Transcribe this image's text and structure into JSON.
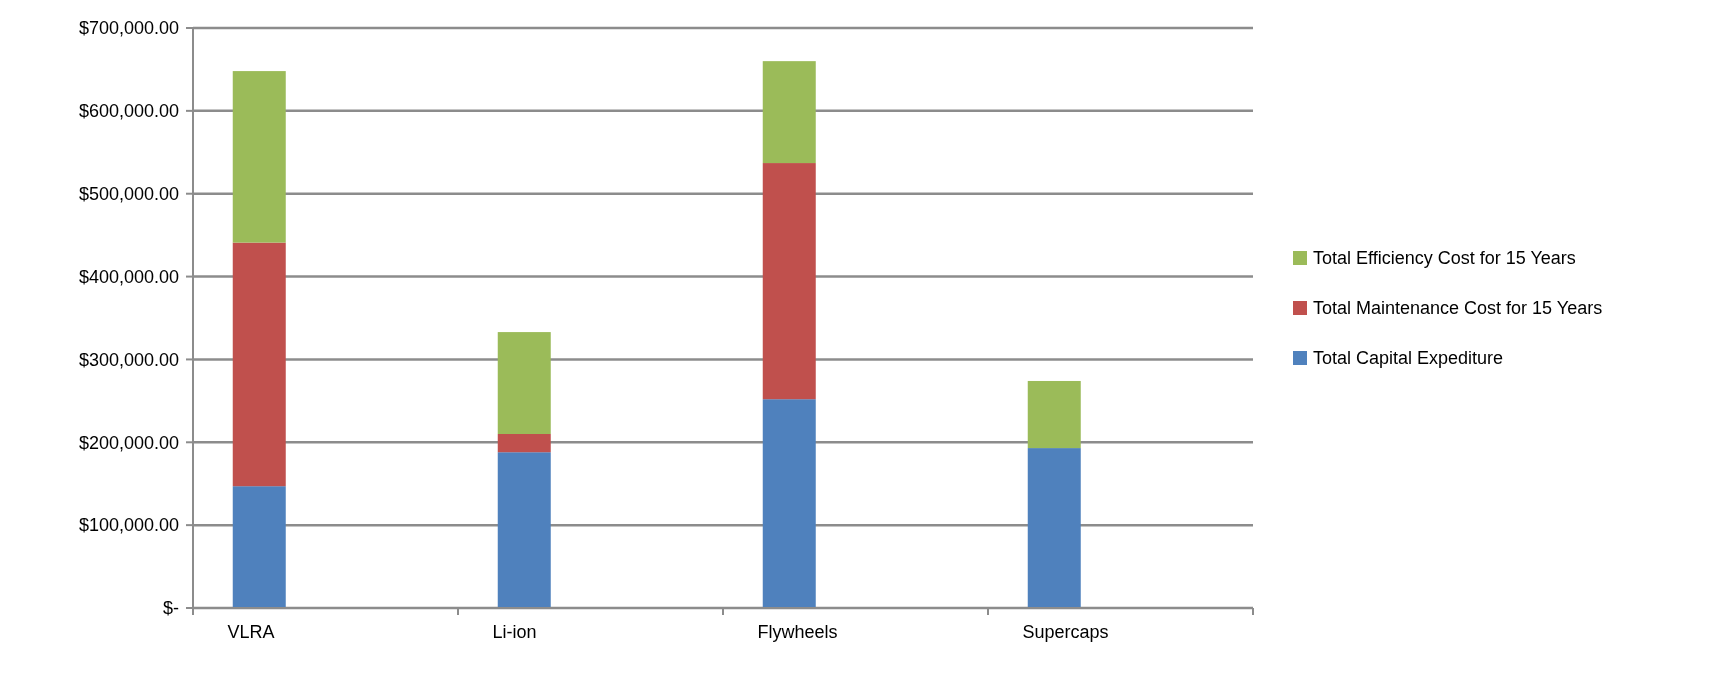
{
  "chart_data": {
    "type": "bar",
    "stacked": true,
    "categories": [
      "VLRA",
      "Li-ion",
      "Flywheels",
      "Supercaps"
    ],
    "series": [
      {
        "name": "Total Capital Expediture",
        "color": "#4f81bd",
        "values": [
          147000,
          188000,
          252000,
          193000
        ]
      },
      {
        "name": "Total Maintenance Cost for 15 Years",
        "color": "#c0504d",
        "values": [
          294000,
          22000,
          285000,
          0
        ]
      },
      {
        "name": "Total Efficiency Cost for 15 Years",
        "color": "#9bbb59",
        "values": [
          207000,
          123000,
          123000,
          81000
        ]
      }
    ],
    "ylim": [
      0,
      700000
    ],
    "yticks": [
      {
        "value": 0,
        "label": "$-"
      },
      {
        "value": 100000,
        "label": "$100,000.00"
      },
      {
        "value": 200000,
        "label": "$200,000.00"
      },
      {
        "value": 300000,
        "label": "$300,000.00"
      },
      {
        "value": 400000,
        "label": "$400,000.00"
      },
      {
        "value": 500000,
        "label": "$500,000.00"
      },
      {
        "value": 600000,
        "label": "$600,000.00"
      },
      {
        "value": 700000,
        "label": "$700,000.00"
      }
    ],
    "grid": "y",
    "legend": "right"
  }
}
